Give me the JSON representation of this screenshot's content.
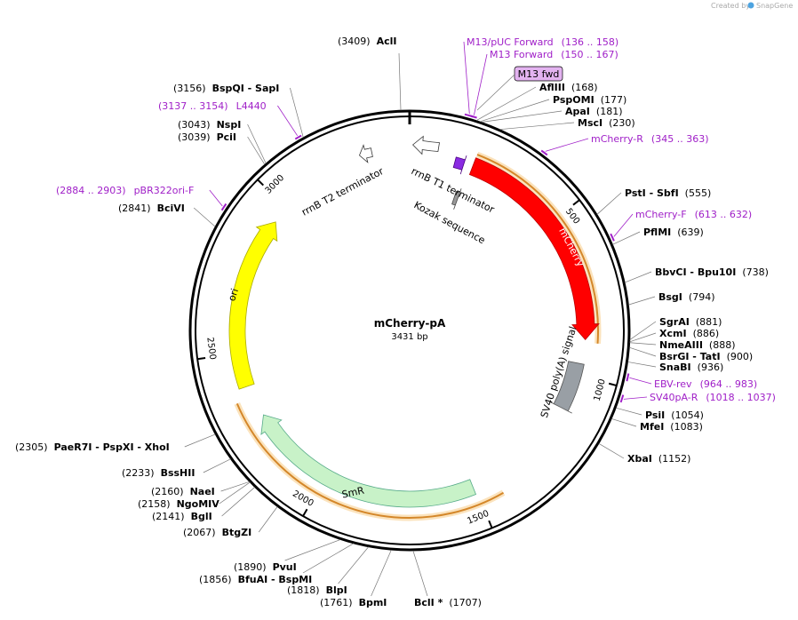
{
  "header": {
    "credit": "Created by",
    "brand": "SnapGene"
  },
  "plasmid": {
    "name": "mCherry-pA",
    "length": "3431 bp"
  },
  "ticks": [
    500,
    1000,
    1500,
    2000,
    2500,
    3000
  ],
  "features": [
    {
      "label": "mCherry"
    },
    {
      "label": "SV40 poly(A) signal"
    },
    {
      "label": "SmR"
    },
    {
      "label": "ori"
    },
    {
      "label": "rrnB T1 terminator"
    },
    {
      "label": "rrnB T2 terminator"
    },
    {
      "label": "Kozak sequence"
    },
    {
      "label": "M13 fwd"
    }
  ],
  "sites": [
    {
      "position": "(3409)",
      "name": "AclI"
    },
    {
      "position": "(3156)",
      "name": "BspQI - SapI"
    },
    {
      "position": "(3043)",
      "name": "NspI"
    },
    {
      "position": "(3039)",
      "name": "PciI"
    },
    {
      "position": "(2841)",
      "name": "BciVI"
    },
    {
      "position": "(2305)",
      "name": "PaeR7I - PspXI - XhoI"
    },
    {
      "position": "(2233)",
      "name": "BssHII"
    },
    {
      "position": "(2160)",
      "name": "NaeI"
    },
    {
      "position": "(2158)",
      "name": "NgoMIV"
    },
    {
      "position": "(2141)",
      "name": "BglI"
    },
    {
      "position": "(2067)",
      "name": "BtgZI"
    },
    {
      "position": "(1890)",
      "name": "PvuI"
    },
    {
      "position": "(1856)",
      "name": "BfuAI - BspMI"
    },
    {
      "position": "(1818)",
      "name": "BlpI"
    },
    {
      "position": "(1761)",
      "name": "BpmI"
    },
    {
      "position": "(1707)",
      "name": "BclI *"
    },
    {
      "position": "(168)",
      "name": "AflIII"
    },
    {
      "position": "(177)",
      "name": "PspOMI"
    },
    {
      "position": "(181)",
      "name": "ApaI"
    },
    {
      "position": "(230)",
      "name": "MscI"
    },
    {
      "position": "(555)",
      "name": "PstI - SbfI"
    },
    {
      "position": "(639)",
      "name": "PflMI"
    },
    {
      "position": "(738)",
      "name": "BbvCI - Bpu10I"
    },
    {
      "position": "(794)",
      "name": "BsgI"
    },
    {
      "position": "(881)",
      "name": "SgrAI"
    },
    {
      "position": "(886)",
      "name": "XcmI"
    },
    {
      "position": "(888)",
      "name": "NmeAIII"
    },
    {
      "position": "(900)",
      "name": "BsrGI - TatI"
    },
    {
      "position": "(936)",
      "name": "SnaBI"
    },
    {
      "position": "(1054)",
      "name": "PsiI"
    },
    {
      "position": "(1083)",
      "name": "MfeI"
    },
    {
      "position": "(1152)",
      "name": "XbaI"
    }
  ],
  "primers": [
    {
      "name": "L4440",
      "range": "(3137 .. 3154)"
    },
    {
      "name": "pBR322ori-F",
      "range": "(2884 .. 2903)"
    },
    {
      "name": "M13/pUC Forward",
      "range": "(136 .. 158)"
    },
    {
      "name": "M13 Forward",
      "range": "(150 .. 167)"
    },
    {
      "name": "mCherry-R",
      "range": "(345 .. 363)"
    },
    {
      "name": "mCherry-F",
      "range": "(613 .. 632)"
    },
    {
      "name": "EBV-rev",
      "range": "(964 .. 983)"
    },
    {
      "name": "SV40pA-R",
      "range": "(1018 .. 1037)"
    }
  ]
}
